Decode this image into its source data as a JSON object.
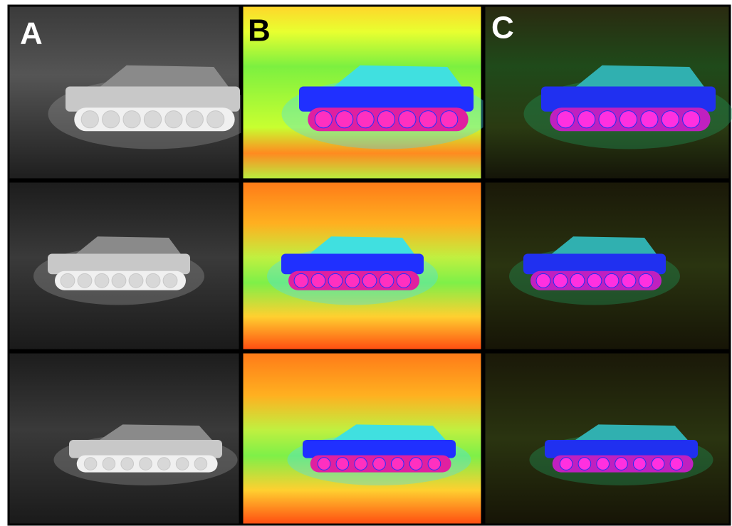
{
  "panels": {
    "labels": [
      "A",
      "B",
      "C"
    ]
  }
}
